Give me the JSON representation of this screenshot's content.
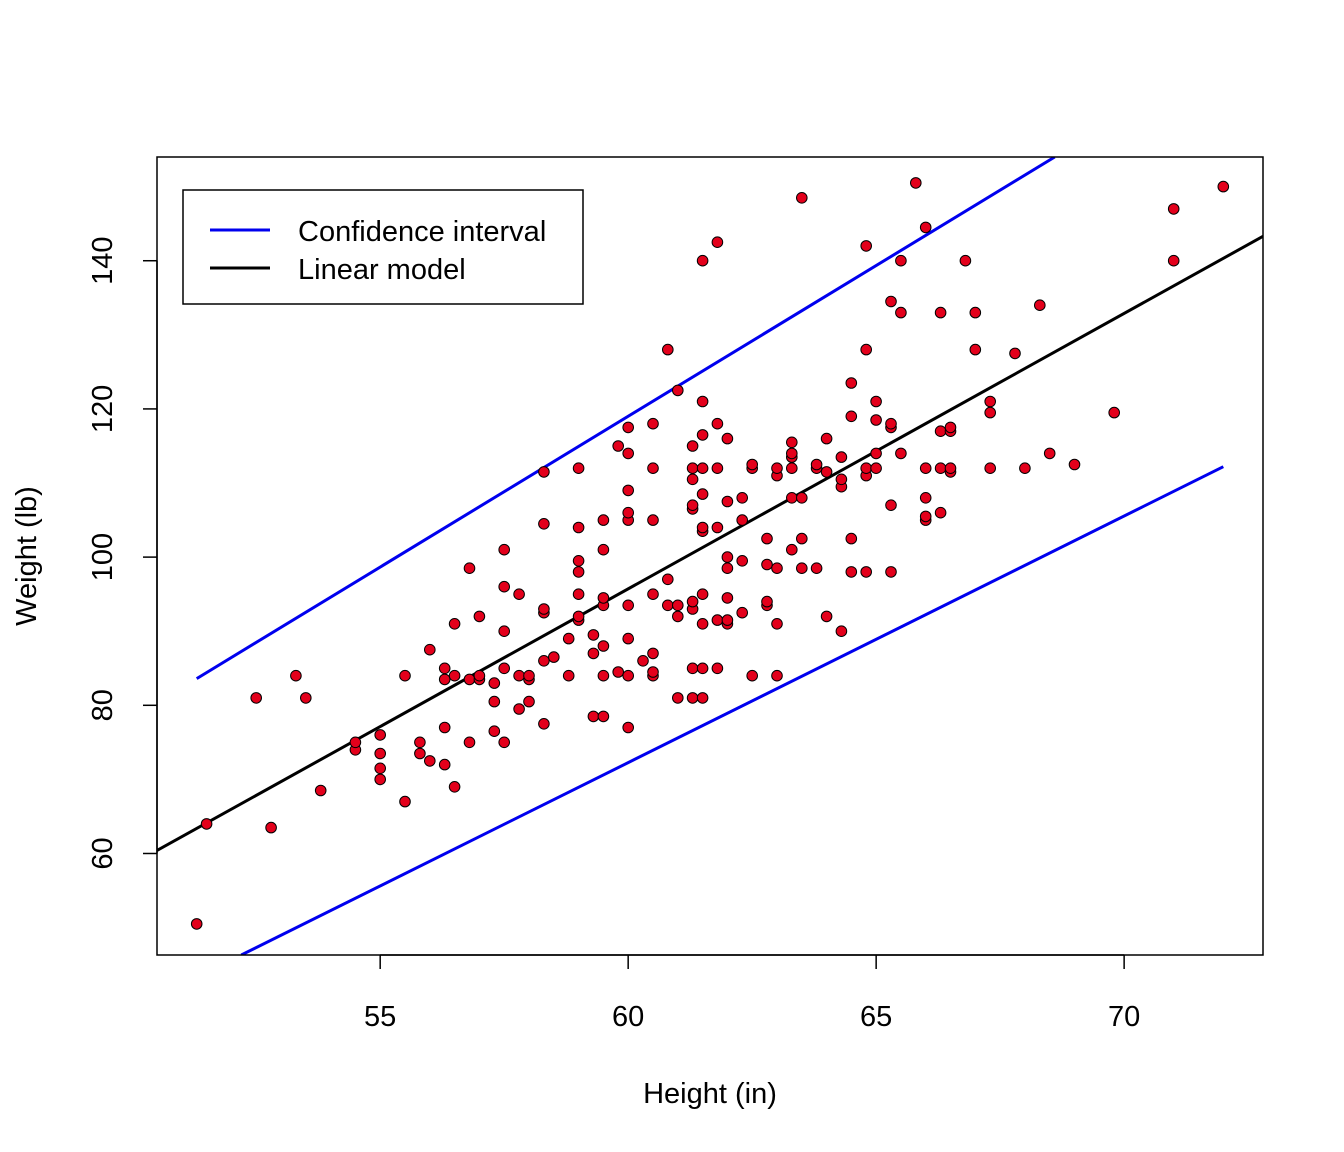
{
  "chart_data": {
    "type": "scatter",
    "title": "",
    "xlabel": "Height (in)",
    "ylabel": "Weight (lb)",
    "xlim": [
      50.5,
      72.8
    ],
    "ylim": [
      46.3,
      154.0
    ],
    "x_ticks": [
      55,
      60,
      65,
      70
    ],
    "y_ticks": [
      60,
      80,
      100,
      120,
      140
    ],
    "grid": false,
    "legend_position": "top-left",
    "colors": {
      "points_fill": "#e3001b",
      "points_stroke": "#000000",
      "linear_model": "#000000",
      "confidence_interval": "#0000ee"
    },
    "legend": [
      {
        "label": "Confidence interval",
        "color": "#0000ee"
      },
      {
        "label": "Linear model",
        "color": "#000000"
      }
    ],
    "series": [
      {
        "name": "Linear model",
        "type": "line",
        "points": [
          [
            50.5,
            60.4
          ],
          [
            72.8,
            143.3
          ]
        ]
      },
      {
        "name": "Confidence interval",
        "type": "line",
        "points": [
          [
            51.3,
            83.6
          ],
          [
            68.6,
            154.0
          ]
        ]
      },
      {
        "name": "Confidence interval",
        "type": "line",
        "points": [
          [
            52.2,
            46.3
          ],
          [
            72.0,
            112.2
          ]
        ]
      }
    ],
    "points": [
      [
        51.3,
        50.5
      ],
      [
        51.5,
        64.0
      ],
      [
        52.5,
        81.0
      ],
      [
        52.8,
        63.5
      ],
      [
        53.3,
        84.0
      ],
      [
        53.5,
        81.0
      ],
      [
        53.8,
        68.5
      ],
      [
        54.5,
        74.0
      ],
      [
        54.5,
        75.0
      ],
      [
        55.0,
        70.0
      ],
      [
        55.0,
        71.5
      ],
      [
        55.0,
        73.5
      ],
      [
        55.0,
        76.0
      ],
      [
        55.5,
        67.0
      ],
      [
        55.5,
        84.0
      ],
      [
        55.8,
        73.5
      ],
      [
        55.8,
        75.0
      ],
      [
        56.0,
        72.5
      ],
      [
        56.0,
        87.5
      ],
      [
        56.3,
        72.0
      ],
      [
        56.3,
        77.0
      ],
      [
        56.3,
        83.5
      ],
      [
        56.3,
        85.0
      ],
      [
        56.5,
        69.0
      ],
      [
        56.5,
        84.0
      ],
      [
        56.5,
        91.0
      ],
      [
        56.8,
        75.0
      ],
      [
        56.8,
        83.5
      ],
      [
        56.8,
        98.5
      ],
      [
        57.0,
        83.5
      ],
      [
        57.0,
        84.0
      ],
      [
        57.0,
        92.0
      ],
      [
        57.3,
        76.5
      ],
      [
        57.3,
        80.5
      ],
      [
        57.3,
        83.0
      ],
      [
        57.5,
        75.0
      ],
      [
        57.5,
        85.0
      ],
      [
        57.5,
        90.0
      ],
      [
        57.5,
        96.0
      ],
      [
        57.5,
        101.0
      ],
      [
        57.8,
        79.5
      ],
      [
        57.8,
        84.0
      ],
      [
        57.8,
        95.0
      ],
      [
        58.0,
        80.5
      ],
      [
        58.0,
        83.5
      ],
      [
        58.0,
        84.0
      ],
      [
        58.3,
        77.5
      ],
      [
        58.3,
        86.0
      ],
      [
        58.3,
        92.5
      ],
      [
        58.3,
        93.0
      ],
      [
        58.3,
        104.5
      ],
      [
        58.3,
        111.5
      ],
      [
        58.5,
        86.5
      ],
      [
        58.8,
        84.0
      ],
      [
        58.8,
        89.0
      ],
      [
        59.0,
        91.5
      ],
      [
        59.0,
        92.0
      ],
      [
        59.0,
        95.0
      ],
      [
        59.0,
        98.0
      ],
      [
        59.0,
        99.5
      ],
      [
        59.0,
        104.0
      ],
      [
        59.0,
        112.0
      ],
      [
        59.3,
        78.5
      ],
      [
        59.3,
        87.0
      ],
      [
        59.3,
        89.5
      ],
      [
        59.5,
        78.5
      ],
      [
        59.5,
        84.0
      ],
      [
        59.5,
        88.0
      ],
      [
        59.5,
        93.5
      ],
      [
        59.5,
        94.5
      ],
      [
        59.5,
        101.0
      ],
      [
        59.5,
        105.0
      ],
      [
        59.8,
        84.5
      ],
      [
        59.8,
        115.0
      ],
      [
        60.0,
        77.0
      ],
      [
        60.0,
        84.0
      ],
      [
        60.0,
        89.0
      ],
      [
        60.0,
        93.5
      ],
      [
        60.0,
        105.0
      ],
      [
        60.0,
        106.0
      ],
      [
        60.0,
        109.0
      ],
      [
        60.0,
        114.0
      ],
      [
        60.0,
        117.5
      ],
      [
        60.3,
        86.0
      ],
      [
        60.5,
        84.0
      ],
      [
        60.5,
        84.5
      ],
      [
        60.5,
        87.0
      ],
      [
        60.5,
        95.0
      ],
      [
        60.5,
        105.0
      ],
      [
        60.5,
        112.0
      ],
      [
        60.5,
        118.0
      ],
      [
        60.8,
        93.5
      ],
      [
        60.8,
        97.0
      ],
      [
        60.8,
        128.0
      ],
      [
        61.0,
        81.0
      ],
      [
        61.0,
        92.0
      ],
      [
        61.0,
        93.5
      ],
      [
        61.0,
        122.5
      ],
      [
        61.3,
        81.0
      ],
      [
        61.3,
        85.0
      ],
      [
        61.3,
        93.0
      ],
      [
        61.3,
        94.0
      ],
      [
        61.3,
        106.5
      ],
      [
        61.3,
        107.0
      ],
      [
        61.3,
        110.5
      ],
      [
        61.3,
        112.0
      ],
      [
        61.3,
        115.0
      ],
      [
        61.5,
        81.0
      ],
      [
        61.5,
        85.0
      ],
      [
        61.5,
        91.0
      ],
      [
        61.5,
        95.0
      ],
      [
        61.5,
        103.5
      ],
      [
        61.5,
        104.0
      ],
      [
        61.5,
        108.5
      ],
      [
        61.5,
        112.0
      ],
      [
        61.5,
        116.5
      ],
      [
        61.5,
        121.0
      ],
      [
        61.5,
        140.0
      ],
      [
        61.8,
        85.0
      ],
      [
        61.8,
        91.5
      ],
      [
        61.8,
        104.0
      ],
      [
        61.8,
        112.0
      ],
      [
        61.8,
        118.0
      ],
      [
        61.8,
        142.5
      ],
      [
        62.0,
        91.0
      ],
      [
        62.0,
        91.5
      ],
      [
        62.0,
        94.5
      ],
      [
        62.0,
        98.5
      ],
      [
        62.0,
        100.0
      ],
      [
        62.0,
        107.5
      ],
      [
        62.0,
        116.0
      ],
      [
        62.3,
        92.5
      ],
      [
        62.3,
        99.5
      ],
      [
        62.3,
        105.0
      ],
      [
        62.3,
        108.0
      ],
      [
        62.5,
        84.0
      ],
      [
        62.5,
        112.0
      ],
      [
        62.5,
        112.5
      ],
      [
        62.8,
        93.5
      ],
      [
        62.8,
        94.0
      ],
      [
        62.8,
        99.0
      ],
      [
        62.8,
        102.5
      ],
      [
        63.0,
        84.0
      ],
      [
        63.0,
        91.0
      ],
      [
        63.0,
        98.5
      ],
      [
        63.0,
        111.0
      ],
      [
        63.0,
        112.0
      ],
      [
        63.3,
        101.0
      ],
      [
        63.3,
        108.0
      ],
      [
        63.3,
        112.0
      ],
      [
        63.3,
        113.5
      ],
      [
        63.3,
        114.0
      ],
      [
        63.3,
        115.5
      ],
      [
        63.5,
        98.5
      ],
      [
        63.5,
        102.5
      ],
      [
        63.5,
        108.0
      ],
      [
        63.5,
        148.5
      ],
      [
        63.8,
        98.5
      ],
      [
        63.8,
        112.0
      ],
      [
        63.8,
        112.5
      ],
      [
        64.0,
        92.0
      ],
      [
        64.0,
        111.5
      ],
      [
        64.0,
        116.0
      ],
      [
        64.3,
        90.0
      ],
      [
        64.3,
        109.5
      ],
      [
        64.3,
        110.5
      ],
      [
        64.3,
        113.5
      ],
      [
        64.5,
        98.0
      ],
      [
        64.5,
        102.5
      ],
      [
        64.5,
        119.0
      ],
      [
        64.5,
        123.5
      ],
      [
        64.8,
        98.0
      ],
      [
        64.8,
        111.0
      ],
      [
        64.8,
        112.0
      ],
      [
        64.8,
        128.0
      ],
      [
        64.8,
        142.0
      ],
      [
        65.0,
        112.0
      ],
      [
        65.0,
        114.0
      ],
      [
        65.0,
        118.5
      ],
      [
        65.0,
        121.0
      ],
      [
        65.3,
        98.0
      ],
      [
        65.3,
        107.0
      ],
      [
        65.3,
        117.5
      ],
      [
        65.3,
        118.0
      ],
      [
        65.3,
        134.5
      ],
      [
        65.5,
        114.0
      ],
      [
        65.5,
        133.0
      ],
      [
        65.5,
        140.0
      ],
      [
        65.8,
        150.5
      ],
      [
        66.0,
        105.0
      ],
      [
        66.0,
        105.5
      ],
      [
        66.0,
        108.0
      ],
      [
        66.0,
        112.0
      ],
      [
        66.0,
        144.5
      ],
      [
        66.3,
        106.0
      ],
      [
        66.3,
        112.0
      ],
      [
        66.3,
        117.0
      ],
      [
        66.3,
        133.0
      ],
      [
        66.5,
        111.5
      ],
      [
        66.5,
        112.0
      ],
      [
        66.5,
        117.0
      ],
      [
        66.5,
        117.5
      ],
      [
        66.8,
        140.0
      ],
      [
        67.0,
        128.0
      ],
      [
        67.0,
        133.0
      ],
      [
        67.3,
        112.0
      ],
      [
        67.3,
        119.5
      ],
      [
        67.3,
        121.0
      ],
      [
        67.8,
        127.5
      ],
      [
        68.0,
        112.0
      ],
      [
        68.3,
        134.0
      ],
      [
        68.5,
        114.0
      ],
      [
        69.0,
        112.5
      ],
      [
        69.8,
        119.5
      ],
      [
        71.0,
        140.0
      ],
      [
        71.0,
        147.0
      ],
      [
        72.0,
        150.0
      ]
    ]
  }
}
